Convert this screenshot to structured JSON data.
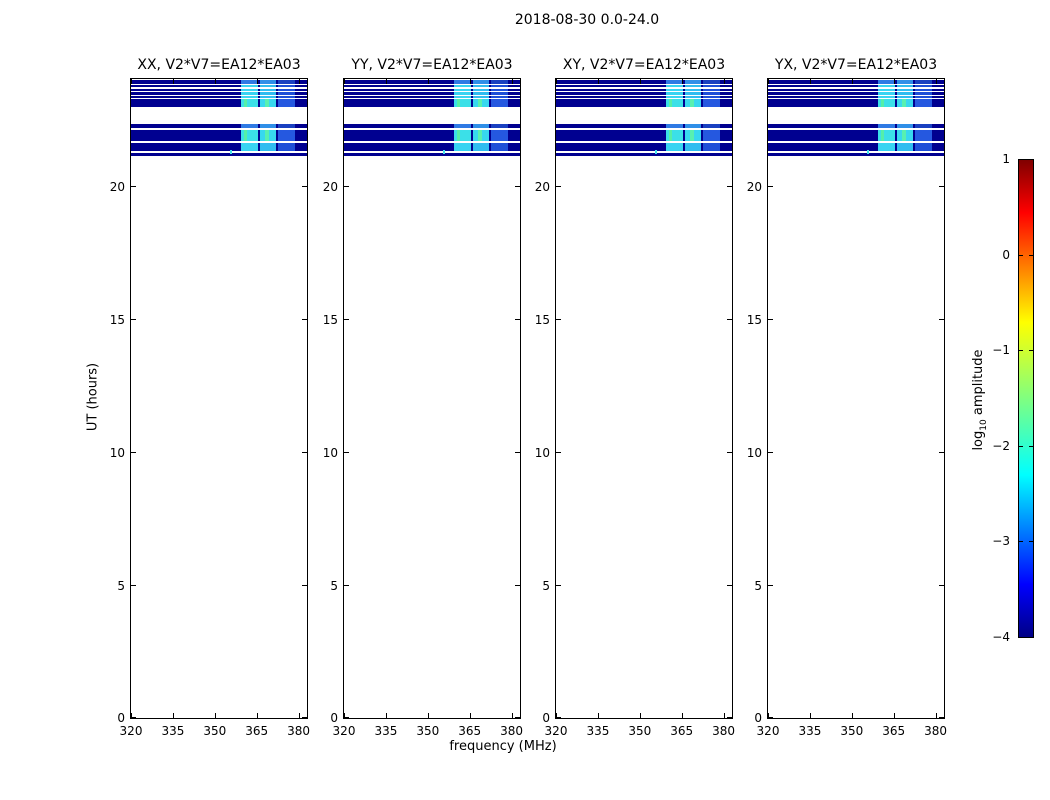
{
  "figure": {
    "title": "2018-08-30 0.0-24.0",
    "xlabel": "frequency (MHz)",
    "ylabel": "UT (hours)"
  },
  "colorbar": {
    "label_parts": {
      "prefix": "log",
      "sub": "10",
      "suffix": " amplitude"
    },
    "ticks": [
      1,
      0,
      -1,
      -2,
      -3,
      -4
    ],
    "range": [
      -4,
      1
    ],
    "colormap": "jet",
    "gradient_stops": [
      "#000085 0%",
      "#0000ff 11%",
      "#00ffff 34%",
      "#80ff80 50%",
      "#ffff00 66%",
      "#ff0000 89%",
      "#800000 100%"
    ]
  },
  "chart_data": {
    "type": "heatmap",
    "title": "2018-08-30 0.0-24.0",
    "xlabel": "frequency (MHz)",
    "ylabel": "UT (hours)",
    "x_range_mhz": [
      320,
      383
    ],
    "x_ticks": [
      320,
      335,
      350,
      365,
      380
    ],
    "y_range_hours": [
      0,
      24
    ],
    "y_ticks": [
      0,
      5,
      10,
      15,
      20
    ],
    "panels": [
      {
        "title": "XX, V2*V7=EA12*EA03"
      },
      {
        "title": "YY, V2*V7=EA12*EA03"
      },
      {
        "title": "XY, V2*V7=EA12*EA03"
      },
      {
        "title": "YX, V2*V7=EA12*EA03"
      }
    ],
    "band_base_color": "#000090",
    "bands": [
      {
        "ut_hi": 23.96,
        "ut_lo": 23.82,
        "patch": "medium"
      },
      {
        "ut_hi": 23.78,
        "ut_lo": 23.69,
        "patch": "bright"
      },
      {
        "ut_hi": 23.64,
        "ut_lo": 23.55,
        "patch": "bright"
      },
      {
        "ut_hi": 23.5,
        "ut_lo": 23.41,
        "patch": "bright"
      },
      {
        "ut_hi": 23.36,
        "ut_lo": 23.28,
        "patch": "bright"
      },
      {
        "ut_hi": 23.24,
        "ut_lo": 22.96,
        "patch": "bright2"
      },
      {
        "ut_hi": 22.32,
        "ut_lo": 22.17,
        "patch": "medium"
      },
      {
        "ut_hi": 22.09,
        "ut_lo": 21.67,
        "patch": "bright2"
      },
      {
        "ut_hi": 21.61,
        "ut_lo": 21.29,
        "patch": "bright"
      },
      {
        "ut_hi": 21.21,
        "ut_lo": 21.12,
        "patch": "none"
      }
    ],
    "patch_sets": {
      "bright": [
        {
          "f0": 359.2,
          "f1": 365.4,
          "color": "#38d4f2"
        },
        {
          "f0": 366.2,
          "f1": 371.8,
          "color": "#30bdf0"
        },
        {
          "f0": 372.5,
          "f1": 378.6,
          "color": "#1e4fd8"
        }
      ],
      "bright2": [
        {
          "f0": 359.2,
          "f1": 365.4,
          "color": "#3be0e8"
        },
        {
          "f0": 360.3,
          "f1": 361.6,
          "color": "#55efa8"
        },
        {
          "f0": 366.2,
          "f1": 371.8,
          "color": "#37d8ef"
        },
        {
          "f0": 368.0,
          "f1": 369.3,
          "color": "#58f0b0"
        },
        {
          "f0": 372.5,
          "f1": 378.6,
          "color": "#2558e0"
        }
      ],
      "medium": [
        {
          "f0": 359.2,
          "f1": 365.4,
          "color": "#2f7ae4"
        },
        {
          "f0": 366.2,
          "f1": 371.8,
          "color": "#2f8fe8"
        },
        {
          "f0": 372.5,
          "f1": 378.6,
          "color": "#1940c0"
        }
      ],
      "none": []
    },
    "dots": [
      {
        "f": 355.5,
        "ut": 21.26,
        "color": "#45e2ea"
      }
    ]
  }
}
